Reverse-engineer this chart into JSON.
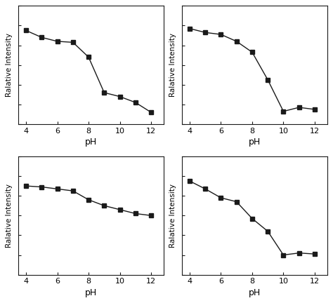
{
  "subplots": [
    {
      "x": [
        4,
        5,
        6,
        7,
        8,
        9,
        10,
        11,
        12
      ],
      "y": [
        0.95,
        0.88,
        0.84,
        0.83,
        0.68,
        0.32,
        0.28,
        0.22,
        0.12
      ],
      "xlabel": "pH",
      "ylabel": "Ralative Intensity",
      "ylim": [
        0,
        1.2
      ]
    },
    {
      "x": [
        4,
        5,
        6,
        7,
        8,
        9,
        10,
        11,
        12
      ],
      "y": [
        0.97,
        0.93,
        0.91,
        0.84,
        0.73,
        0.45,
        0.13,
        0.17,
        0.15
      ],
      "xlabel": "pH",
      "ylabel": "Ralative Intensity",
      "ylim": [
        0,
        1.2
      ]
    },
    {
      "x": [
        4,
        5,
        6,
        7,
        8,
        9,
        10,
        11,
        12
      ],
      "y": [
        0.9,
        0.89,
        0.87,
        0.85,
        0.76,
        0.7,
        0.66,
        0.62,
        0.6
      ],
      "xlabel": "pH",
      "ylabel": "Ralative Intensity",
      "ylim": [
        0,
        1.2
      ]
    },
    {
      "x": [
        4,
        5,
        6,
        7,
        8,
        9,
        10,
        11,
        12
      ],
      "y": [
        0.95,
        0.87,
        0.78,
        0.74,
        0.57,
        0.44,
        0.2,
        0.22,
        0.21
      ],
      "xlabel": "pH",
      "ylabel": "Ralative Intensity",
      "ylim": [
        0,
        1.2
      ]
    }
  ],
  "line_color": "#1a1a1a",
  "marker": "s",
  "markersize": 4,
  "linewidth": 1.0,
  "xticks": [
    4,
    6,
    8,
    10,
    12
  ],
  "background_color": "#ffffff"
}
